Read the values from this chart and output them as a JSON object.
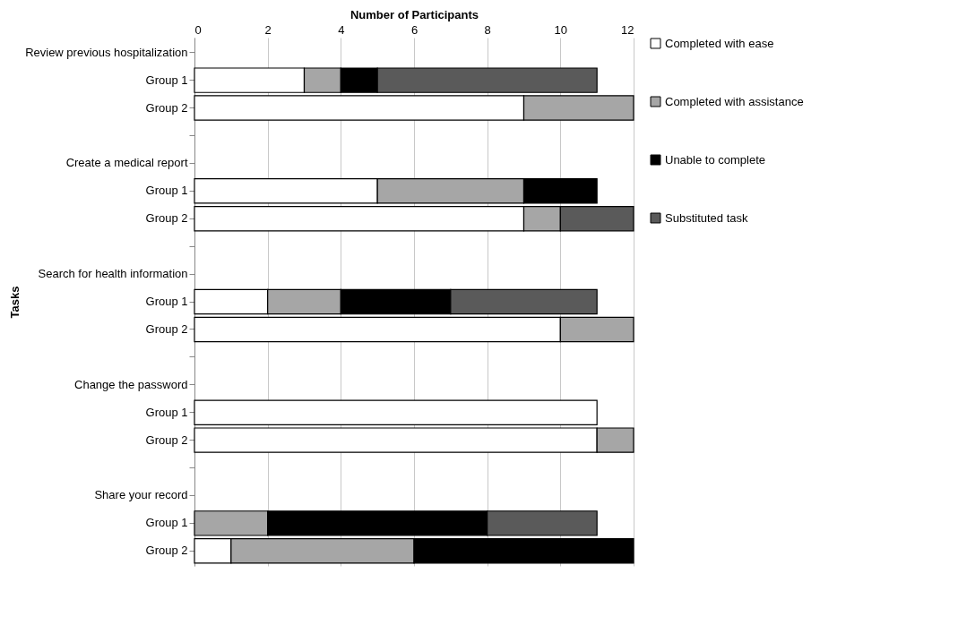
{
  "chart_data": {
    "type": "bar",
    "orientation": "horizontal",
    "stacked": true,
    "xlabel": "Number of Participants",
    "ylabel": "Tasks",
    "categories": [
      "Review previous hospitalization",
      "Group 1",
      "Group 2",
      null,
      "Create a medical report",
      "Group 1",
      "Group 2",
      null,
      "Search for health information",
      "Group 1",
      "Group 2",
      null,
      "Change the password",
      "Group 1",
      "Group 2",
      null,
      "Share your record",
      "Group 1",
      "Group 2"
    ],
    "series": [
      {
        "name": "Completed with ease",
        "color": "#ffffff",
        "values": [
          null,
          3,
          9,
          null,
          null,
          5,
          9,
          null,
          null,
          2,
          10,
          null,
          null,
          11,
          11,
          null,
          null,
          null,
          1
        ]
      },
      {
        "name": "Completed with assistance",
        "color": "#a6a6a6",
        "values": [
          null,
          1,
          3,
          null,
          null,
          4,
          1,
          null,
          null,
          2,
          2,
          null,
          null,
          null,
          1,
          null,
          null,
          2,
          5
        ]
      },
      {
        "name": "Unable to complete",
        "color": "#000000",
        "values": [
          null,
          1,
          null,
          null,
          null,
          2,
          null,
          null,
          null,
          3,
          null,
          null,
          null,
          null,
          null,
          null,
          null,
          6,
          6
        ]
      },
      {
        "name": "Substituted task",
        "color": "#5a5a5a",
        "values": [
          null,
          6,
          null,
          null,
          null,
          null,
          2,
          null,
          null,
          4,
          null,
          null,
          null,
          null,
          null,
          null,
          null,
          3,
          null
        ]
      }
    ],
    "xlim": [
      0,
      12
    ],
    "xticks": [
      0,
      2,
      4,
      6,
      8,
      10,
      12
    ],
    "grid": "x",
    "legend": "right"
  }
}
